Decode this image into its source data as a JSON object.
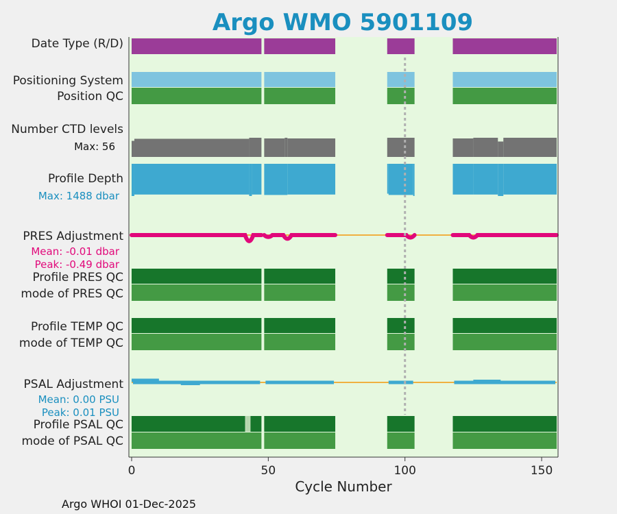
{
  "title": "Argo WMO 5901109",
  "footer": "Argo WHOI 01-Dec-2025",
  "colors": {
    "background": "#f0f0f0",
    "plot_bg": "#e6f8df",
    "title": "#1a8fbf",
    "purple": "#9b3c98",
    "lightblue": "#7ec4df",
    "midgreen": "#449a44",
    "darkgreen": "#17762b",
    "gray": "#737373",
    "blue": "#3ea9d0",
    "magenta": "#e1087a",
    "orange": "#f0b040",
    "dotted": "#b0b0b0"
  },
  "chart_data": {
    "type": "timeline",
    "xlabel": "Cycle Number",
    "xlim": [
      -1,
      156
    ],
    "xticks": [
      0,
      50,
      100,
      150
    ],
    "vertical_marker_cycle": 100,
    "segments": [
      [
        0,
        47.5
      ],
      [
        48.5,
        74.5
      ],
      [
        93.5,
        103.5
      ],
      [
        117.5,
        155.5
      ]
    ],
    "rows": {
      "date_type": {
        "label": "Date Type (R/D)"
      },
      "positioning_system": {
        "label": "Positioning System"
      },
      "position_qc": {
        "label": "Position QC"
      },
      "ctd_levels": {
        "label": "Number CTD levels",
        "max_text": "Max: 56",
        "max": 56
      },
      "profile_depth": {
        "label": "Profile Depth",
        "max_text": "Max: 1488 dbar",
        "max": 1488
      },
      "pres_adjustment": {
        "label": "PRES Adjustment",
        "mean_text": "Mean: -0.01 dbar",
        "peak_text": "Peak: -0.49 dbar",
        "mean": -0.01,
        "peak": -0.49
      },
      "profile_pres_qc": {
        "label": "Profile PRES QC"
      },
      "mode_pres_qc": {
        "label": "mode of PRES QC"
      },
      "profile_temp_qc": {
        "label": "Profile TEMP QC"
      },
      "mode_temp_qc": {
        "label": "mode of TEMP QC"
      },
      "psal_adjustment": {
        "label": "PSAL Adjustment",
        "mean_text": "Mean: 0.00 PSU",
        "peak_text": "Peak: 0.01 PSU",
        "mean": 0.0,
        "peak": 0.01
      },
      "profile_psal_qc": {
        "label": "Profile PSAL QC",
        "flagged_cycles": [
          42,
          43
        ]
      },
      "mode_psal_qc": {
        "label": "mode of PSAL QC"
      }
    },
    "ctd_levels_series": [
      {
        "from": 0,
        "to": 1,
        "value": 47
      },
      {
        "from": 1,
        "to": 43,
        "value": 53
      },
      {
        "from": 43,
        "to": 47.5,
        "value": 56
      },
      {
        "from": 48.5,
        "to": 56,
        "value": 54
      },
      {
        "from": 56,
        "to": 57,
        "value": 56
      },
      {
        "from": 57,
        "to": 74.5,
        "value": 54
      },
      {
        "from": 93.5,
        "to": 103.5,
        "value": 56
      },
      {
        "from": 117.5,
        "to": 125,
        "value": 54
      },
      {
        "from": 125,
        "to": 134,
        "value": 56
      },
      {
        "from": 134,
        "to": 136,
        "value": 45
      },
      {
        "from": 136,
        "to": 155.5,
        "value": 56
      }
    ],
    "profile_depth_series": [
      {
        "from": 0,
        "to": 1,
        "value": 1488
      },
      {
        "from": 1,
        "to": 43,
        "value": 1420
      },
      {
        "from": 43,
        "to": 44,
        "value": 1488
      },
      {
        "from": 44,
        "to": 47.5,
        "value": 1420
      },
      {
        "from": 48.5,
        "to": 57,
        "value": 1440
      },
      {
        "from": 57,
        "to": 74.5,
        "value": 1420
      },
      {
        "from": 93.5,
        "to": 94,
        "value": 1380
      },
      {
        "from": 94,
        "to": 103,
        "value": 1440
      },
      {
        "from": 103,
        "to": 103.5,
        "value": 1488
      },
      {
        "from": 117.5,
        "to": 125,
        "value": 1420
      },
      {
        "from": 125,
        "to": 134,
        "value": 1420
      },
      {
        "from": 134,
        "to": 136,
        "value": 1488
      },
      {
        "from": 136,
        "to": 155.5,
        "value": 1420
      }
    ],
    "pres_dips": [
      {
        "cycle": 43,
        "value": -0.49
      },
      {
        "cycle": 50,
        "value": -0.15
      },
      {
        "cycle": 57,
        "value": -0.3
      },
      {
        "cycle": 102,
        "value": -0.2
      },
      {
        "cycle": 125,
        "value": -0.2
      }
    ],
    "psal_bumps": [
      {
        "from": 0,
        "to": 10,
        "value": 0.01
      },
      {
        "from": 18,
        "to": 25,
        "value": -0.005
      },
      {
        "from": 125,
        "to": 135,
        "value": 0.005
      }
    ]
  }
}
